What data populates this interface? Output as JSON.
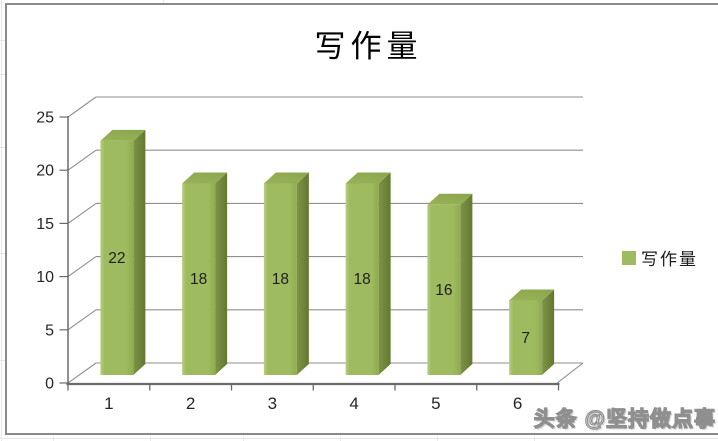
{
  "watermark": {
    "text": "头条 @坚持做点事"
  },
  "chart_data": {
    "type": "bar",
    "style": "3d-column",
    "title": "写作量",
    "categories": [
      "1",
      "2",
      "3",
      "4",
      "5",
      "6"
    ],
    "series": [
      {
        "name": "写作量",
        "values": [
          22,
          18,
          18,
          18,
          16,
          7
        ]
      }
    ],
    "xlabel": "",
    "ylabel": "",
    "ylim": [
      0,
      25
    ],
    "yticks": [
      0,
      5,
      10,
      15,
      20,
      25
    ],
    "grid": true,
    "data_labels": "inside-center",
    "legend_position": "right",
    "colors": {
      "bar_front": "#9fbb60",
      "bar_front_light": "#b9cd83",
      "bar_front_dark": "#8fac4f",
      "bar_side": "#6d8239",
      "bar_side_light": "#7d9346",
      "bar_side_dark": "#64792f",
      "bar_top": "#8ca84e",
      "bar_top_light": "#99b259",
      "gridline": "#8f8f8f",
      "axis": "#6a6a6a",
      "value_label": "#1f1f1f",
      "border": "#8a8a8a"
    }
  }
}
